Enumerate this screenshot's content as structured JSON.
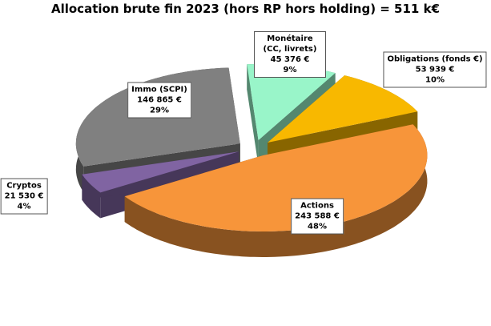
{
  "chart_data": {
    "type": "pie3d",
    "title": "Allocation brute fin 2023 (hors RP hors holding) = 511 k€",
    "categories": [
      "Monétaire (CC, livrets)",
      "Obligations (fonds €)",
      "Actions",
      "Cryptos",
      "Immo (SCPI)"
    ],
    "values": [
      45376,
      53939,
      243588,
      21530,
      146865
    ],
    "value_labels": [
      "45 376 €",
      "53 939 €",
      "243 588 €",
      "21 530 €",
      "146 865 €"
    ],
    "percent_labels": [
      "9%",
      "10%",
      "48%",
      "4%",
      "29%"
    ],
    "colors": [
      "#99f5c9",
      "#f8b800",
      "#f7953a",
      "#8064a2",
      "#808080"
    ]
  }
}
